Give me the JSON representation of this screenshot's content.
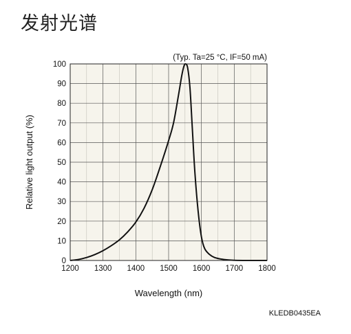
{
  "page": {
    "title": "发射光谱",
    "figure_code": "KLEDB0435EA"
  },
  "chart_data": {
    "type": "line",
    "title": "",
    "condition_note": "(Typ. Ta=25 °C, IF=50 mA)",
    "xlabel": "Wavelength (nm)",
    "ylabel": "Relative light output (%)",
    "xlim": [
      1200,
      1800
    ],
    "ylim": [
      0,
      100
    ],
    "x_ticks": [
      1200,
      1300,
      1400,
      1500,
      1600,
      1700,
      1800
    ],
    "y_ticks": [
      0,
      10,
      20,
      30,
      40,
      50,
      60,
      70,
      80,
      90,
      100
    ],
    "x_tick_labels": [
      "1200",
      "1300",
      "1400",
      "1500",
      "1600",
      "1700",
      "1800"
    ],
    "y_tick_labels": [
      "0",
      "10",
      "20",
      "30",
      "40",
      "50",
      "60",
      "70",
      "80",
      "90",
      "100"
    ],
    "grid": true,
    "background_color": "#f6f4ec",
    "line_color": "#111111",
    "series": [
      {
        "x": [
          1200,
          1225,
          1250,
          1275,
          1300,
          1325,
          1350,
          1375,
          1400,
          1425,
          1450,
          1475,
          1500,
          1515,
          1530,
          1540,
          1547,
          1552,
          1558,
          1565,
          1572,
          1580,
          1590,
          1600,
          1610,
          1625,
          1640,
          1660,
          1680,
          1700,
          1750,
          1800
        ],
        "y": [
          0,
          0.5,
          1.5,
          3,
          5,
          7.5,
          10.5,
          14.5,
          19.5,
          26.5,
          36,
          48,
          61,
          70,
          84,
          94,
          99,
          100,
          98,
          88,
          68,
          45,
          25,
          12,
          6,
          3,
          1.5,
          0.7,
          0.3,
          0.1,
          0,
          0
        ]
      }
    ]
  }
}
